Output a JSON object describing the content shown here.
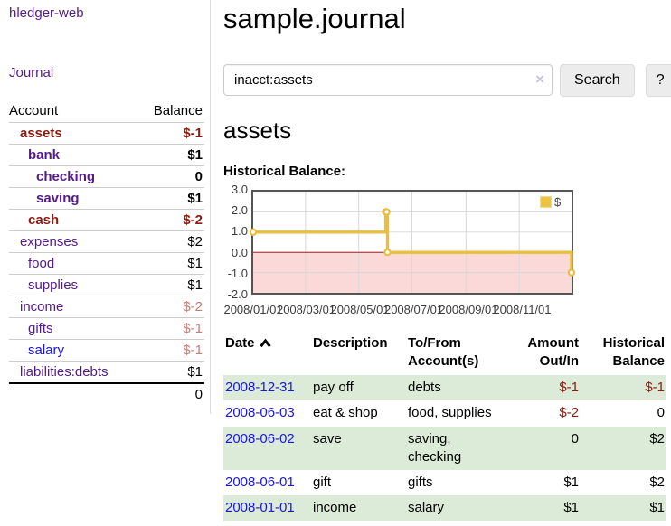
{
  "app": {
    "brand": "hledger-web"
  },
  "sidebar": {
    "nav": {
      "journal": "Journal"
    },
    "accounts_header": {
      "account": "Account",
      "balance": "Balance"
    },
    "accounts": [
      {
        "name": "assets",
        "depth": 1,
        "balance": "$-1",
        "in_filter": true,
        "negative": true
      },
      {
        "name": "bank",
        "depth": 2,
        "balance": "$1",
        "in_filter": true,
        "negative": false
      },
      {
        "name": "checking",
        "depth": 3,
        "balance": "0",
        "in_filter": true,
        "negative": false
      },
      {
        "name": "saving",
        "depth": 3,
        "balance": "$1",
        "in_filter": true,
        "negative": false
      },
      {
        "name": "cash",
        "depth": 2,
        "balance": "$-2",
        "in_filter": true,
        "negative": true
      },
      {
        "name": "expenses",
        "depth": 1,
        "balance": "$2",
        "in_filter": false,
        "negative": false
      },
      {
        "name": "food",
        "depth": 2,
        "balance": "$1",
        "in_filter": false,
        "negative": false
      },
      {
        "name": "supplies",
        "depth": 2,
        "balance": "$1",
        "in_filter": false,
        "negative": false
      },
      {
        "name": "income",
        "depth": 1,
        "balance": "$-2",
        "in_filter": false,
        "negative": true
      },
      {
        "name": "gifts",
        "depth": 2,
        "balance": "$-1",
        "in_filter": false,
        "negative": true
      },
      {
        "name": "salary",
        "depth": 2,
        "balance": "$-1",
        "in_filter": false,
        "negative": true
      },
      {
        "name": "liabilities:debts",
        "depth": 1,
        "balance": "$1",
        "in_filter": false,
        "negative": false
      }
    ],
    "total": "0"
  },
  "header": {
    "title": "sample.journal"
  },
  "search": {
    "value": "inacct:assets",
    "placeholder": "",
    "clear_icon": "×",
    "button_label": "Search",
    "help_label": "?"
  },
  "account_page": {
    "heading": "assets",
    "chart_title": "Historical Balance:"
  },
  "chart_data": {
    "type": "line",
    "subtype": "step-after",
    "title": "Historical Balance",
    "xrange": [
      "2008-01-01",
      "2008-12-31"
    ],
    "ylim": [
      -2,
      3
    ],
    "grid": true,
    "legend_position": "top-right",
    "series": [
      {
        "name": "$",
        "color": "#e9bf3e",
        "points": [
          [
            "2008-01-01",
            1
          ],
          [
            "2008-06-01",
            2
          ],
          [
            "2008-06-02",
            2
          ],
          [
            "2008-06-03",
            0
          ],
          [
            "2008-12-31",
            -1
          ]
        ]
      }
    ],
    "yticks": [
      {
        "v": 3,
        "label": "3.0"
      },
      {
        "v": 2,
        "label": "2.0"
      },
      {
        "v": 1,
        "label": "1.0"
      },
      {
        "v": 0,
        "label": "0.0"
      },
      {
        "v": -1,
        "label": "-1.0"
      },
      {
        "v": -2,
        "label": "-2.0"
      }
    ],
    "xticks": [
      {
        "date": "2008-01-01",
        "label": "2008/01/01"
      },
      {
        "date": "2008-03-01",
        "label": "2008/03/01"
      },
      {
        "date": "2008-05-01",
        "label": "2008/05/01"
      },
      {
        "date": "2008-07-01",
        "label": "2008/07/01"
      },
      {
        "date": "2008-09-01",
        "label": "2008/09/01"
      },
      {
        "date": "2008-11-01",
        "label": "2008/11/01"
      }
    ],
    "negative_fill": "#fbd9d9",
    "zero_line_color": "#8b0000",
    "grid_color": "#d8d8d8"
  },
  "register": {
    "columns": {
      "date": "Date",
      "description": "Description",
      "accounts": "To/From Account(s)",
      "amount": "Amount Out/In",
      "balance": "Historical Balance"
    },
    "sort": {
      "column": "Date",
      "direction": "ascending"
    },
    "rows": [
      {
        "date": "2008-12-31",
        "description": "pay off",
        "accounts": "debts",
        "amount": "$-1",
        "balance": "$-1"
      },
      {
        "date": "2008-06-03",
        "description": "eat & shop",
        "accounts": "food, supplies",
        "amount": "$-2",
        "balance": "0"
      },
      {
        "date": "2008-06-02",
        "description": "save",
        "accounts": "saving,\nchecking",
        "amount": "0",
        "balance": "$2"
      },
      {
        "date": "2008-06-01",
        "description": "gift",
        "accounts": "gifts",
        "amount": "$1",
        "balance": "$2"
      },
      {
        "date": "2008-01-01",
        "description": "income",
        "accounts": "salary",
        "amount": "$1",
        "balance": "$1"
      }
    ]
  }
}
